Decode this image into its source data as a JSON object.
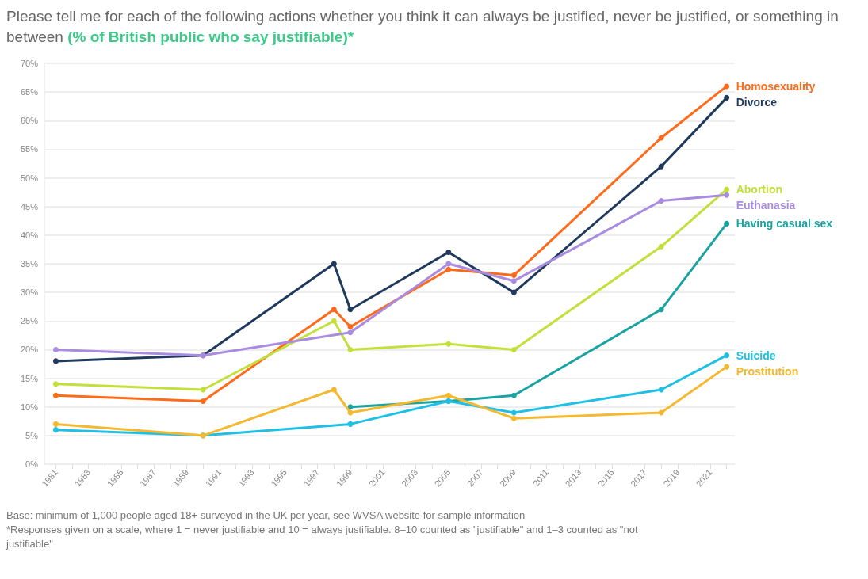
{
  "chart_data": {
    "type": "line",
    "title": "Please tell me for each of the following actions whether you think it can always be justified, never be justified, or something in between",
    "subtitle": "(% of British public who say justifiable)*",
    "annotations": [
      "Base: minimum of 1,000 people aged 18+ surveyed in the UK per year, see WVSA website for sample information",
      "*Responses given on a scale, where 1 = never justifiable and 10 = always justifiable. 8–10 counted as \"justifiable\" and 1–3 counted as \"not justifiable\""
    ],
    "xlim": [
      1980.3,
      2022.5
    ],
    "xticks": [
      1981,
      {
        "value": 1982,
        "label": null
      },
      1983,
      {
        "value": 1984,
        "label": null
      },
      1985,
      {
        "value": 1986,
        "label": null
      },
      1987,
      {
        "value": 1988,
        "label": null
      },
      1989,
      {
        "value": 1990,
        "label": null
      },
      1991,
      {
        "value": 1992,
        "label": null
      },
      1993,
      {
        "value": 1994,
        "label": null
      },
      1995,
      {
        "value": 1996,
        "label": null
      },
      1997,
      {
        "value": 1998,
        "label": null
      },
      1999,
      {
        "value": 2000,
        "label": null
      },
      2001,
      {
        "value": 2002,
        "label": null
      },
      2003,
      {
        "value": 2004,
        "label": null
      },
      2005,
      {
        "value": 2006,
        "label": null
      },
      2007,
      {
        "value": 2008,
        "label": null
      },
      2009,
      {
        "value": 2010,
        "label": null
      },
      2011,
      {
        "value": 2012,
        "label": null
      },
      2013,
      {
        "value": 2014,
        "label": null
      },
      2015,
      {
        "value": 2016,
        "label": null
      },
      2017,
      {
        "value": 2018,
        "label": null
      },
      2019,
      {
        "value": 2020,
        "label": null
      },
      2021,
      {
        "value": 2022,
        "label": null
      }
    ],
    "ylim": [
      0,
      70
    ],
    "yticks": [
      {
        "value": 0,
        "label": "0%"
      },
      {
        "value": 5,
        "label": "5%"
      },
      {
        "value": 10,
        "label": "10%"
      },
      {
        "value": 15,
        "label": "15%"
      },
      {
        "value": 20,
        "label": "20%"
      },
      {
        "value": 25,
        "label": "25%"
      },
      {
        "value": 30,
        "label": "30%"
      },
      {
        "value": 35,
        "label": "35%"
      },
      {
        "value": 40,
        "label": "40%"
      },
      {
        "value": 45,
        "label": "45%"
      },
      {
        "value": 50,
        "label": "50%"
      },
      {
        "value": 55,
        "label": "55%"
      },
      {
        "value": 60,
        "label": "60%"
      },
      {
        "value": 65,
        "label": "65%"
      },
      {
        "value": 70,
        "label": "70%"
      }
    ],
    "grid": "y",
    "legend": false,
    "marker": "circle",
    "line_style": "solid",
    "series": [
      {
        "name": "Homosexuality",
        "color": "#ff6b1a",
        "x": [
          1981,
          1990,
          1998,
          1999,
          2005,
          2009,
          2018,
          2022
        ],
        "values": [
          12,
          11,
          27,
          24,
          34,
          33,
          57,
          66
        ]
      },
      {
        "name": "Divorce",
        "color": "#1f3a5c",
        "x": [
          1981,
          1990,
          1998,
          1999,
          2005,
          2009,
          2018,
          2022
        ],
        "values": [
          18,
          19,
          35,
          27,
          37,
          30,
          52,
          64
        ]
      },
      {
        "name": "Abortion",
        "color": "#c2e03a",
        "x": [
          1981,
          1990,
          1998,
          1999,
          2005,
          2009,
          2018,
          2022
        ],
        "values": [
          14,
          13,
          25,
          20,
          21,
          20,
          38,
          48
        ]
      },
      {
        "name": "Euthanasia",
        "color": "#a98be0",
        "x": [
          1981,
          1990,
          1999,
          2005,
          2009,
          2018,
          2022
        ],
        "values": [
          20,
          19,
          23,
          35,
          32,
          46,
          47
        ]
      },
      {
        "name": "Having casual sex",
        "color": "#1aa3a3",
        "x": [
          1999,
          2005,
          2009,
          2018,
          2022
        ],
        "values": [
          10,
          11,
          12,
          27,
          42
        ]
      },
      {
        "name": "Suicide",
        "color": "#1ec0e6",
        "x": [
          1981,
          1990,
          1999,
          2005,
          2009,
          2018,
          2022
        ],
        "values": [
          6,
          5,
          7,
          11,
          9,
          13,
          19
        ]
      },
      {
        "name": "Prostitution",
        "color": "#f5b82e",
        "x": [
          1981,
          1990,
          1998,
          1999,
          2005,
          2009,
          2018,
          2022
        ],
        "values": [
          7,
          5,
          13,
          9,
          12,
          8,
          9,
          17
        ]
      }
    ]
  }
}
